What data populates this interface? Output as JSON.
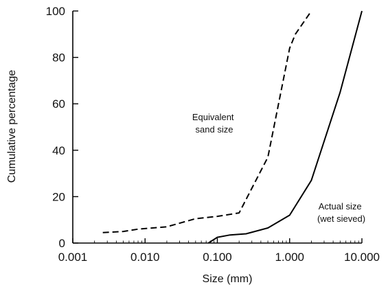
{
  "chart_data": {
    "type": "line",
    "title": "",
    "xlabel": "Size (mm)",
    "ylabel": "Cumulative percentage",
    "x_scale": "log",
    "xlim": [
      0.001,
      10
    ],
    "ylim": [
      0,
      100
    ],
    "x_ticks": [
      0.001,
      0.01,
      0.1,
      1,
      10
    ],
    "x_tick_labels": [
      "0.001",
      "0.010",
      "0.100",
      "1.000",
      "10.000"
    ],
    "y_ticks": [
      0,
      20,
      40,
      60,
      80,
      100
    ],
    "y_tick_labels": [
      "0",
      "20",
      "40",
      "60",
      "80",
      "100"
    ],
    "grid": false,
    "series": [
      {
        "name": "Equivalent sand size",
        "line_style": "dashed",
        "color": "#000000",
        "points": [
          [
            0.0026,
            4.5
          ],
          [
            0.005,
            5
          ],
          [
            0.008,
            6
          ],
          [
            0.02,
            7
          ],
          [
            0.05,
            10.5
          ],
          [
            0.1,
            11.5
          ],
          [
            0.2,
            13
          ],
          [
            0.5,
            37
          ],
          [
            1.0,
            84
          ],
          [
            1.2,
            90
          ],
          [
            2.0,
            100
          ]
        ]
      },
      {
        "name": "Actual size (wet sieved)",
        "line_style": "solid",
        "color": "#000000",
        "points": [
          [
            0.075,
            0
          ],
          [
            0.1,
            2.5
          ],
          [
            0.15,
            3.5
          ],
          [
            0.25,
            4
          ],
          [
            0.5,
            6.5
          ],
          [
            1.0,
            12
          ],
          [
            2.0,
            27
          ],
          [
            5.0,
            65
          ],
          [
            10.0,
            100
          ]
        ]
      }
    ],
    "annotations": [
      {
        "lines": [
          "Equivalent",
          "sand size"
        ],
        "series": 0
      },
      {
        "lines": [
          "Actual size",
          "(wet sieved)"
        ],
        "series": 1
      }
    ]
  }
}
